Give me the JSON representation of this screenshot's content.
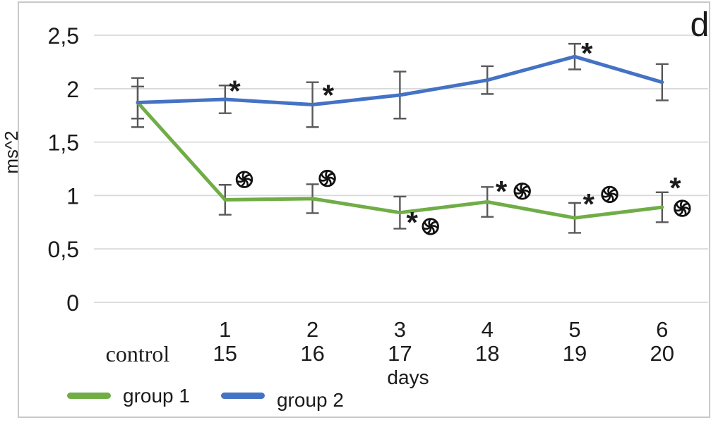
{
  "figure": {
    "panel_label": "d",
    "background": "#ffffff",
    "frame_color": "#c9c9c9"
  },
  "chart_data": {
    "type": "line",
    "title": "",
    "xlabel": "days",
    "ylabel": "ms^2",
    "ylim": [
      0,
      2.5
    ],
    "grid": true,
    "grid_color": "#d9d9d9",
    "error_bar_color": "#595959",
    "text_color": "#1b1b1b",
    "ytick_values": [
      0,
      0.5,
      1,
      1.5,
      2,
      2.5
    ],
    "ytick_labels": [
      "0",
      "0,5",
      "1",
      "1,5",
      "2",
      "2,5"
    ],
    "categories_row1": [
      "control",
      "1",
      "2",
      "3",
      "4",
      "5",
      "6"
    ],
    "categories_row2": [
      "",
      "15",
      "16",
      "17",
      "18",
      "19",
      "20"
    ],
    "legend_position": "bottom-left",
    "series": [
      {
        "name": "group 1",
        "color": "#70AD47",
        "values": [
          1.87,
          0.96,
          0.97,
          0.84,
          0.94,
          0.79,
          0.89
        ],
        "error": [
          0.23,
          0.14,
          0.135,
          0.15,
          0.14,
          0.14,
          0.14
        ]
      },
      {
        "name": "group 2",
        "color": "#4472C4",
        "values": [
          1.87,
          1.9,
          1.85,
          1.94,
          2.08,
          2.3,
          2.06
        ],
        "error": [
          0.15,
          0.13,
          0.21,
          0.22,
          0.13,
          0.12,
          0.17
        ]
      }
    ],
    "annotations": [
      {
        "mark": "asterisk",
        "series": "group 2",
        "x": 1.11,
        "y": 2.01
      },
      {
        "mark": "asterisk",
        "series": "group 2",
        "x": 2.18,
        "y": 1.97
      },
      {
        "mark": "asterisk",
        "series": "group 2",
        "x": 5.14,
        "y": 2.36
      },
      {
        "mark": "pinwheel",
        "series": "group 1",
        "x": 1.22,
        "y": 1.15
      },
      {
        "mark": "pinwheel",
        "series": "group 1",
        "x": 2.17,
        "y": 1.16
      },
      {
        "mark": "asterisk",
        "series": "group 1",
        "x": 3.14,
        "y": 0.78
      },
      {
        "mark": "pinwheel",
        "series": "group 1",
        "x": 3.35,
        "y": 0.71
      },
      {
        "mark": "asterisk",
        "series": "group 1",
        "x": 4.16,
        "y": 1.07
      },
      {
        "mark": "pinwheel",
        "series": "group 1",
        "x": 4.4,
        "y": 1.04
      },
      {
        "mark": "asterisk",
        "series": "group 1",
        "x": 5.16,
        "y": 0.95
      },
      {
        "mark": "pinwheel",
        "series": "group 1",
        "x": 5.4,
        "y": 1.01
      },
      {
        "mark": "asterisk",
        "series": "group 1",
        "x": 6.15,
        "y": 1.1
      },
      {
        "mark": "pinwheel",
        "series": "group 1",
        "x": 6.23,
        "y": 0.88
      }
    ]
  },
  "legend": {
    "items": [
      {
        "label": "group 1",
        "color": "#70AD47"
      },
      {
        "label": "group 2",
        "color": "#4472C4"
      }
    ]
  }
}
